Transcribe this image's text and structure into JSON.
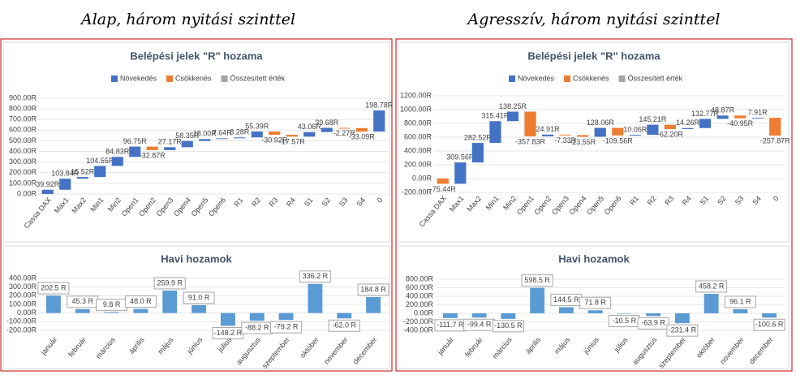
{
  "panels": [
    {
      "heading": "Alap, három nyitási szinttel"
    },
    {
      "heading": "Agresszív, három nyitási szinttel"
    }
  ],
  "chart_data": [
    {
      "type": "waterfall",
      "title": "Belépési jelek \"R\" hozama",
      "legend": [
        {
          "name": "Növekedés",
          "color": "#4472c4"
        },
        {
          "name": "Csökkenés",
          "color": "#ed7d31"
        },
        {
          "name": "Összesített érték",
          "color": "#a5a5a5"
        }
      ],
      "categories": [
        "Cassa DAX",
        "Max1",
        "Max2",
        "Min1",
        "Min2",
        "Open1",
        "Open2",
        "Open3",
        "Open4",
        "Open5",
        "Open6",
        "R1",
        "R2",
        "R3",
        "R4",
        "S1",
        "S2",
        "S3",
        "S4",
        "0"
      ],
      "values": [
        39.92,
        103.84,
        15.52,
        104.55,
        84.83,
        96.75,
        -32.87,
        27.17,
        58.35,
        18.0,
        7.64,
        8.28,
        55.39,
        -30.92,
        -17.57,
        43.06,
        39.68,
        -2.27,
        -33.09,
        198.78
      ],
      "value_labels": [
        "39.92R",
        "103.84R",
        "15.52R",
        "104.55R",
        "84.83R",
        "96.75R",
        "-32.87R",
        "27.17R",
        "58.35R",
        "18.00R",
        "7.64R",
        "8.28R",
        "55.39R",
        "-30.92R",
        "-17.57R",
        "43.06R",
        "39.68R",
        "-2.27R",
        "-33.09R",
        "198.78R"
      ],
      "ylim": [
        0,
        900
      ],
      "yticks": [
        {
          "value": 0,
          "label": "0.00R"
        },
        {
          "value": 100,
          "label": "100.00R"
        },
        {
          "value": 200,
          "label": "200.00R"
        },
        {
          "value": 300,
          "label": "300.00R"
        },
        {
          "value": 400,
          "label": "400.00R"
        },
        {
          "value": 500,
          "label": "500.00R"
        },
        {
          "value": 600,
          "label": "600.00R"
        },
        {
          "value": 700,
          "label": "700.00R"
        },
        {
          "value": 800,
          "label": "800.00R"
        },
        {
          "value": 900,
          "label": "900.00R"
        }
      ]
    },
    {
      "type": "bar",
      "title": "Havi hozamok",
      "color": "#5b9bd5",
      "categories": [
        "január",
        "február",
        "március",
        "április",
        "május",
        "június",
        "július",
        "augusztus",
        "szeptember",
        "október",
        "november",
        "december"
      ],
      "values": [
        202.5,
        45.3,
        9.8,
        48.0,
        259.9,
        91.0,
        -148.2,
        -88.2,
        -79.2,
        336.2,
        -62.0,
        184.8
      ],
      "value_labels": [
        "202.5 R",
        "45.3 R",
        "9.8 R",
        "48.0 R",
        "259.9 R",
        "91.0 R",
        "-148.2 R",
        "-88.2 R",
        "-79.2 R",
        "336.2 R",
        "-62.0 R",
        "184.8 R"
      ],
      "ylim": [
        -200,
        400
      ],
      "yticks": [
        {
          "value": -200,
          "label": "-200.00R"
        },
        {
          "value": -100,
          "label": "-100.00R"
        },
        {
          "value": 0,
          "label": "0.00R"
        },
        {
          "value": 100,
          "label": "100.00R"
        },
        {
          "value": 200,
          "label": "200.00R"
        },
        {
          "value": 300,
          "label": "300.00R"
        },
        {
          "value": 400,
          "label": "400.00R"
        }
      ]
    },
    {
      "type": "waterfall",
      "title": "Belépési jelek \"R\" hozama",
      "legend": [
        {
          "name": "Növekedés",
          "color": "#4472c4"
        },
        {
          "name": "Csökkenés",
          "color": "#ed7d31"
        },
        {
          "name": "Összesített érték",
          "color": "#a5a5a5"
        }
      ],
      "categories": [
        "Cassa DAX",
        "Max1",
        "Max2",
        "Min1",
        "Min2",
        "Open1",
        "Open2",
        "Open3",
        "Open4",
        "Open5",
        "Open6",
        "R1",
        "R2",
        "R3",
        "R4",
        "S1",
        "S2",
        "S3",
        "S4",
        "0"
      ],
      "values": [
        -75.44,
        309.56,
        282.52,
        315.41,
        138.25,
        -357.83,
        24.91,
        -7.33,
        -23.55,
        128.06,
        -109.56,
        10.06,
        145.21,
        -62.2,
        14.26,
        132.77,
        48.87,
        -40.95,
        7.91,
        -257.87
      ],
      "value_labels": [
        "-75.44R",
        "309.56R",
        "282.52R",
        "315.41R",
        "138.25R",
        "-357.83R",
        "24.91R",
        "-7.33R",
        "-23.55R",
        "128.06R",
        "-109.56R",
        "10.06R",
        "145.21R",
        "-62.20R",
        "14.26R",
        "132.77R",
        "48.87R",
        "-40.95R",
        "7.91R",
        "-257.87R"
      ],
      "ylim": [
        -200,
        1200
      ],
      "yticks": [
        {
          "value": -200,
          "label": "-200.00R"
        },
        {
          "value": 0,
          "label": "0.00R"
        },
        {
          "value": 200,
          "label": "200.00R"
        },
        {
          "value": 400,
          "label": "400.00R"
        },
        {
          "value": 600,
          "label": "600.00R"
        },
        {
          "value": 800,
          "label": "800.00R"
        },
        {
          "value": 1000,
          "label": "1000.00R"
        },
        {
          "value": 1200,
          "label": "1200.00R"
        }
      ]
    },
    {
      "type": "bar",
      "title": "Havi hozamok",
      "color": "#5b9bd5",
      "categories": [
        "január",
        "február",
        "március",
        "április",
        "május",
        "június",
        "július",
        "augusztus",
        "szeptember",
        "október",
        "november",
        "december"
      ],
      "values": [
        -111.7,
        -99.4,
        -130.5,
        598.5,
        144.5,
        71.8,
        -10.5,
        -63.9,
        -231.4,
        458.2,
        96.1,
        -100.6
      ],
      "value_labels": [
        "-111.7 R",
        "-99.4 R",
        "-130.5 R",
        "598.5 R",
        "144.5 R",
        "71.8 R",
        "-10.5 R",
        "-63.9 R",
        "-231.4 R",
        "458.2 R",
        "96.1 R",
        "-100.6 R"
      ],
      "ylim": [
        -400,
        800
      ],
      "yticks": [
        {
          "value": -400,
          "label": "-400.00R"
        },
        {
          "value": -200,
          "label": "-200.00R"
        },
        {
          "value": 0,
          "label": "0.00R"
        },
        {
          "value": 200,
          "label": "200.00R"
        },
        {
          "value": 400,
          "label": "400.00R"
        },
        {
          "value": 600,
          "label": "600.00R"
        },
        {
          "value": 800,
          "label": "800.00R"
        }
      ]
    }
  ]
}
